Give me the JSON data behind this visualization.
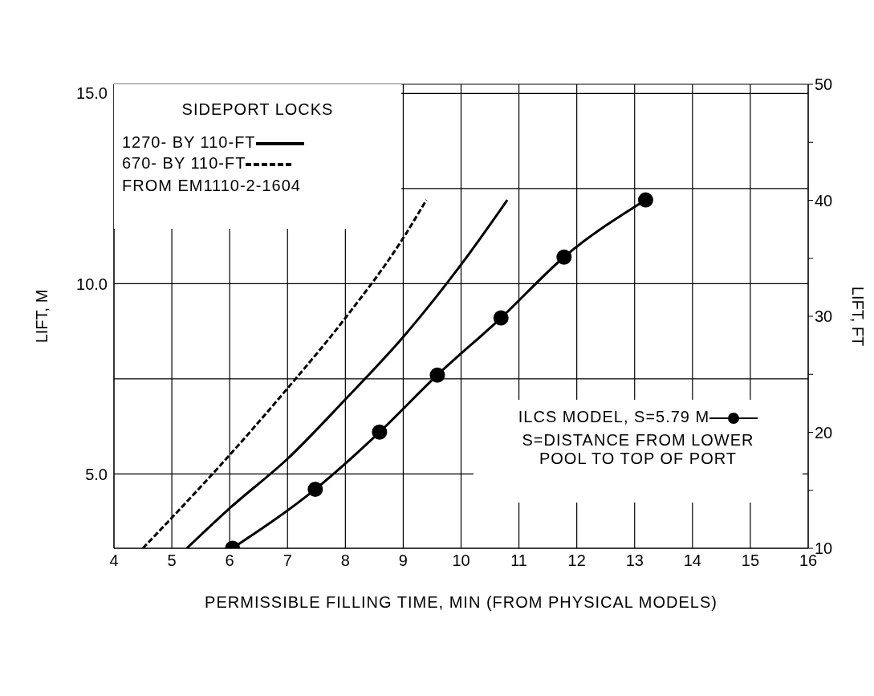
{
  "chart_data": {
    "type": "line",
    "xlabel": "PERMISSIBLE FILLING TIME, MIN  (FROM PHYSICAL MODELS)",
    "ylabel": "LIFT,  M",
    "y2label": "LIFT,  FT",
    "legend_title": "SIDEPORT LOCKS",
    "xlim": [
      4,
      16
    ],
    "xticks": [
      4,
      5,
      6,
      7,
      8,
      9,
      10,
      11,
      12,
      13,
      14,
      15,
      16
    ],
    "ylim": [
      3.048,
      15.24
    ],
    "yticks": [
      {
        "value": 5,
        "label": "5.0"
      },
      {
        "value": 7.5,
        "label": null
      },
      {
        "value": 10,
        "label": "10.0"
      },
      {
        "value": 12.5,
        "label": null
      },
      {
        "value": 15,
        "label": "15.0"
      }
    ],
    "y2lim": [
      10,
      50
    ],
    "y2ticks": [
      10,
      {
        "value": 15,
        "label": null
      },
      20,
      {
        "value": 25,
        "label": null
      },
      30,
      {
        "value": 35,
        "label": null
      },
      40,
      {
        "value": 45,
        "label": null
      },
      50
    ],
    "grid": true,
    "legend": "top left",
    "series": [
      {
        "name": "1270-  BY 110-FT",
        "color": "#000000",
        "line_style": "solid",
        "marker": "none",
        "x": [
          5.26,
          6,
          7,
          8,
          9,
          10,
          10.8
        ],
        "values": [
          3.05,
          4.1,
          5.4,
          6.96,
          8.6,
          10.5,
          12.2
        ]
      },
      {
        "name": "670-  BY 110-FT",
        "color": "#000000",
        "line_style": "dashed",
        "marker": "none",
        "x": [
          4.5,
          5,
          6,
          7,
          8,
          9,
          9.4
        ],
        "values": [
          3.05,
          3.85,
          5.5,
          7.25,
          9.1,
          11.2,
          12.2
        ]
      },
      {
        "name": "ILCS MODEL,   S=5.79 M",
        "color": "#000000",
        "line_style": "solid",
        "marker": "circle",
        "x": [
          6.05,
          7.48,
          8.59,
          9.59,
          10.69,
          11.78,
          13.19
        ],
        "values": [
          3.05,
          4.6,
          6.1,
          7.6,
          9.1,
          10.7,
          12.2
        ]
      }
    ],
    "annotations": [
      "FROM EM1110-2-1604",
      "S=DISTANCE FROM LOWER POOL TO TOP OF PORT"
    ]
  }
}
